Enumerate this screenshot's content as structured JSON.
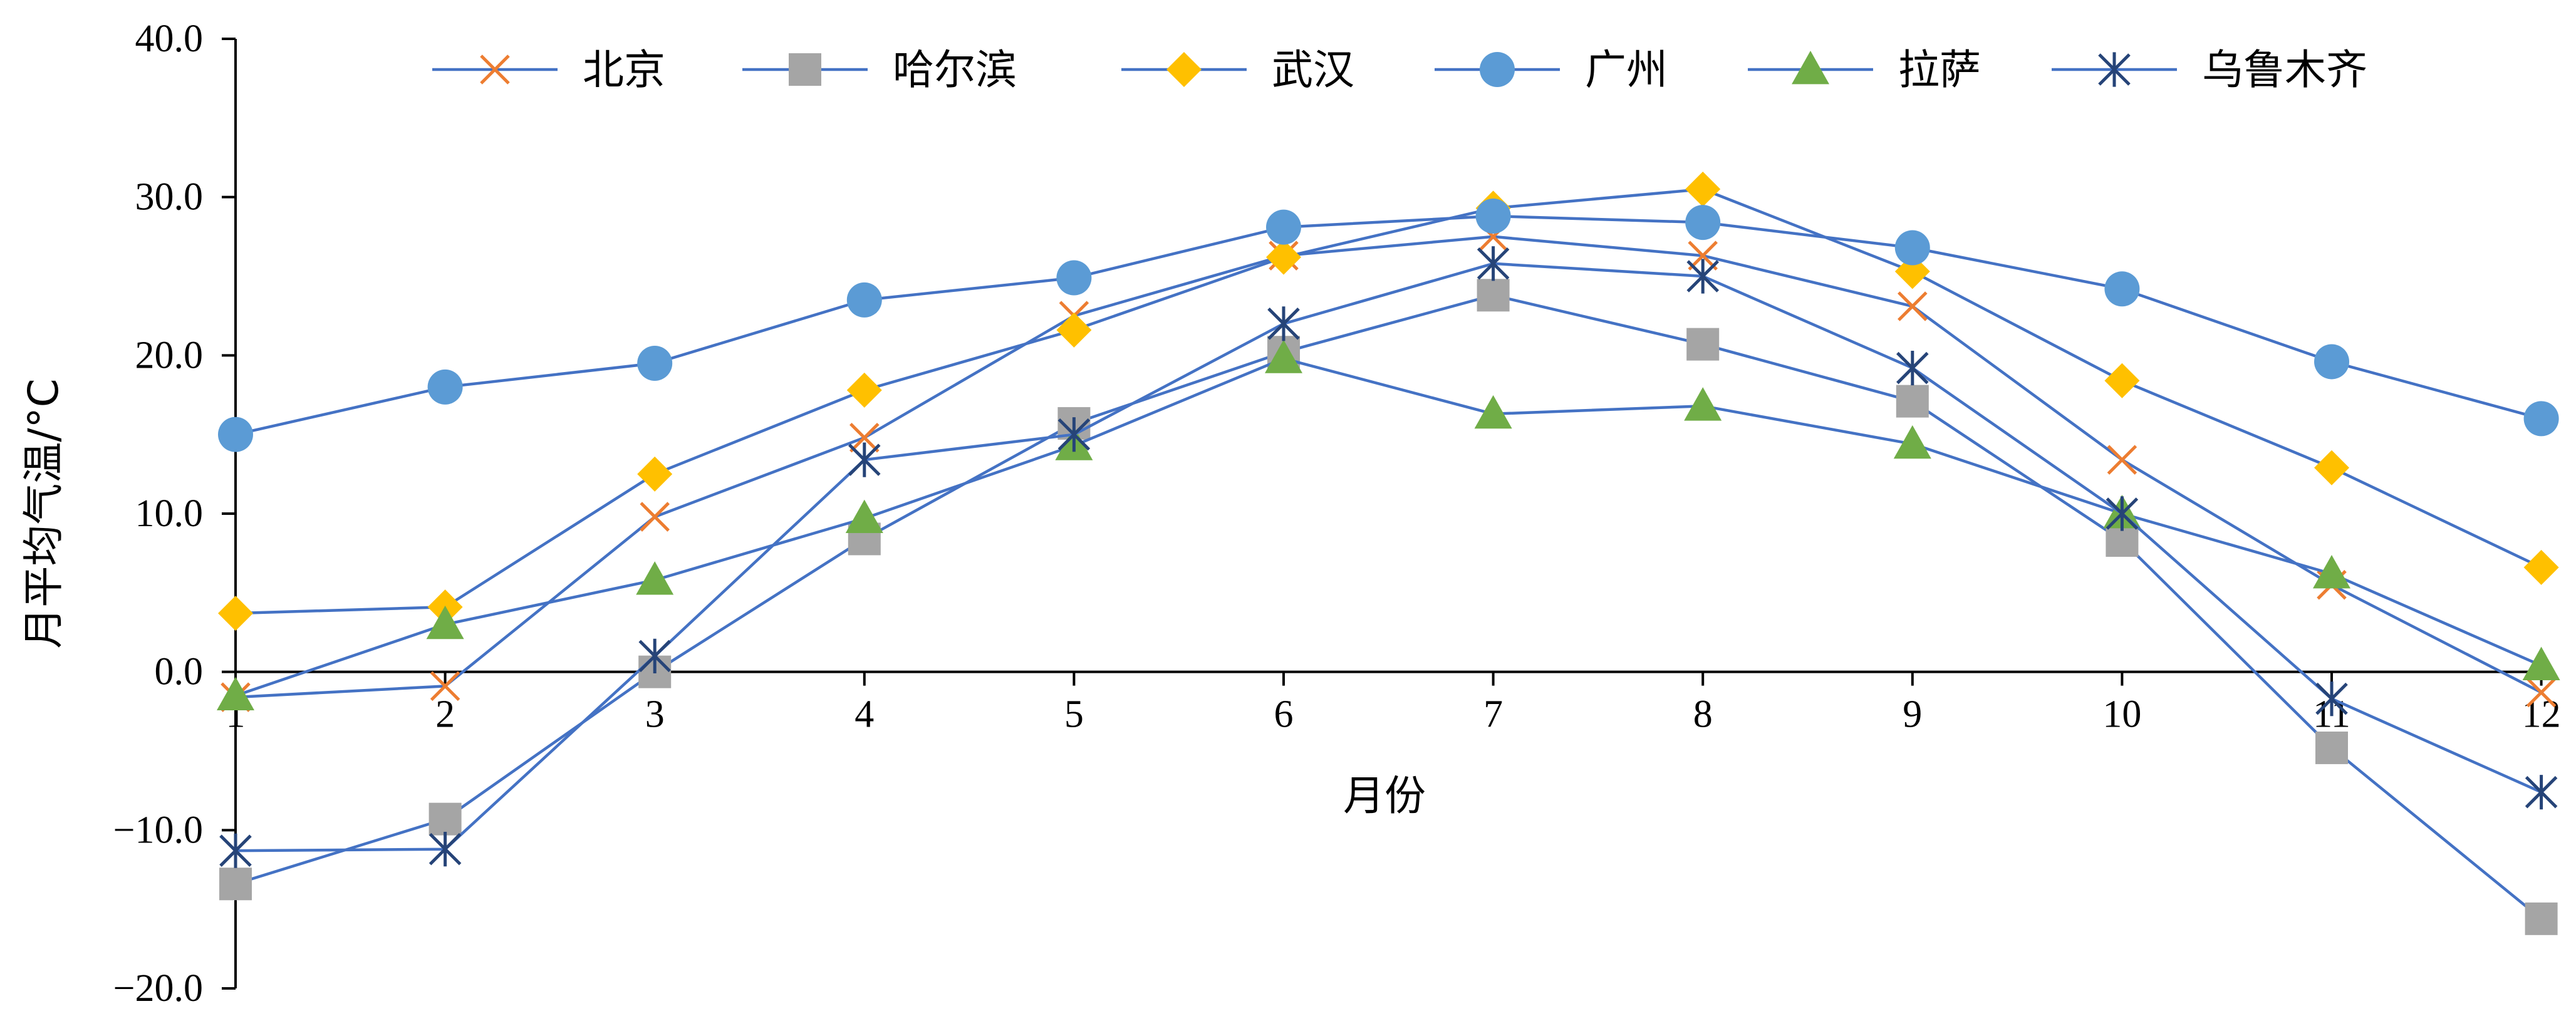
{
  "chart_data": {
    "type": "line",
    "title": "",
    "xlabel": "月份",
    "ylabel": "月平均气温/°C",
    "x": [
      1,
      2,
      3,
      4,
      5,
      6,
      7,
      8,
      9,
      10,
      11,
      12
    ],
    "x_tick_labels": [
      "1",
      "2",
      "3",
      "4",
      "5",
      "6",
      "7",
      "8",
      "9",
      "10",
      "11",
      "12"
    ],
    "ylim": [
      -20,
      40
    ],
    "y_tick_values": [
      -20,
      -10,
      0,
      10,
      20,
      30,
      40
    ],
    "y_tick_labels": [
      "−20.0",
      "−10.0",
      "0.0",
      "10.0",
      "20.0",
      "30.0",
      "40.0"
    ],
    "grid": false,
    "legend_position": "top",
    "line_color": "#4472C4",
    "series": [
      {
        "name": "北京",
        "marker": "x",
        "marker_color": "#ED7D31",
        "values": [
          -1.6,
          -0.9,
          9.8,
          14.8,
          22.5,
          26.3,
          27.5,
          26.3,
          23.1,
          13.4,
          5.5,
          -1.3
        ]
      },
      {
        "name": "哈尔滨",
        "marker": "square",
        "marker_color": "#A5A5A5",
        "values": [
          -13.4,
          -9.3,
          0.0,
          8.4,
          15.7,
          20.2,
          23.8,
          20.7,
          17.1,
          8.3,
          -4.8,
          -15.6
        ]
      },
      {
        "name": "武汉",
        "marker": "diamond",
        "marker_color": "#FFC000",
        "values": [
          3.7,
          4.1,
          12.5,
          17.8,
          21.6,
          26.2,
          29.3,
          30.5,
          25.3,
          18.4,
          12.9,
          6.6
        ]
      },
      {
        "name": "广州",
        "marker": "circle",
        "marker_color": "#5B9BD5",
        "values": [
          15.0,
          18.0,
          19.5,
          23.5,
          24.9,
          28.1,
          28.8,
          28.4,
          26.8,
          24.2,
          19.6,
          16.0
        ]
      },
      {
        "name": "拉萨",
        "marker": "triangle",
        "marker_color": "#70AD47",
        "values": [
          -1.5,
          3.0,
          5.8,
          9.7,
          14.3,
          19.8,
          16.3,
          16.8,
          14.4,
          10.0,
          6.2,
          0.4
        ]
      },
      {
        "name": "乌鲁木齐",
        "marker": "asterisk",
        "marker_color": "#264478",
        "values": [
          -11.3,
          -11.2,
          1.0,
          13.4,
          15.0,
          22.0,
          25.8,
          25.0,
          19.2,
          10.0,
          -1.7,
          -7.6
        ]
      }
    ]
  }
}
